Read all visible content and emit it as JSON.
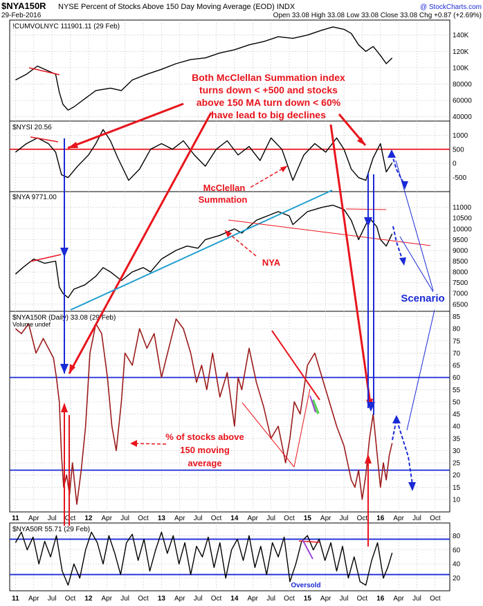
{
  "header": {
    "symbol": "$NYA150R",
    "title": "NYSE Percent of Stocks Above 150 Day Moving Average (EOD) INDX",
    "date": "29-Feb-2016",
    "ohlc": "Open 33.08  High 33.08  Low 33.08  Close 33.08  Chg +0.87 (+2.69%)",
    "brand": "@ StockCharts.com"
  },
  "colors": {
    "price": "#000000",
    "red": "#e8141c",
    "blue": "#1a2ad6",
    "trend": "#1f9fcf",
    "darkred": "#9b1b1b",
    "purple": "#a04ad8",
    "green": "#5fd35f"
  },
  "chart_data": [
    {
      "type": "line",
      "name": "cumvol",
      "title": "!CUMVOLNYC 111901.11 (29 Feb)",
      "ylim": [
        38000,
        155000
      ],
      "ticks": [
        {
          "v": 40000,
          "l": "40000"
        },
        {
          "v": 60000,
          "l": "60000"
        },
        {
          "v": 80000,
          "l": "80000"
        },
        {
          "v": 100000,
          "l": "100K"
        },
        {
          "v": 120000,
          "l": "120K"
        },
        {
          "v": 140000,
          "l": "140K"
        }
      ],
      "x": [
        2011.0,
        2011.15,
        2011.3,
        2011.45,
        2011.55,
        2011.6,
        2011.65,
        2011.72,
        2011.8,
        2011.95,
        2012.1,
        2012.3,
        2012.45,
        2012.6,
        2012.8,
        2013.0,
        2013.2,
        2013.4,
        2013.6,
        2013.8,
        2014.0,
        2014.2,
        2014.4,
        2014.6,
        2014.8,
        2015.0,
        2015.2,
        2015.35,
        2015.5,
        2015.6,
        2015.7,
        2015.8,
        2015.9,
        2016.0,
        2016.08,
        2016.16
      ],
      "y": [
        85000,
        92000,
        102000,
        96000,
        92000,
        70000,
        55000,
        48000,
        52000,
        62000,
        72000,
        75000,
        72000,
        85000,
        92000,
        98000,
        105000,
        110000,
        112000,
        118000,
        122000,
        128000,
        132000,
        138000,
        136000,
        140000,
        146000,
        150000,
        147000,
        142000,
        128000,
        120000,
        126000,
        115000,
        105000,
        112000
      ]
    },
    {
      "type": "line",
      "name": "nysi",
      "title": "$NYSI 20.56",
      "ylim": [
        -900,
        1400
      ],
      "ticks": [
        {
          "v": -500,
          "l": "-500"
        },
        {
          "v": 0,
          "l": "0"
        },
        {
          "v": 500,
          "l": "500"
        },
        {
          "v": 1000,
          "l": "1000"
        }
      ],
      "x": [
        2011.0,
        2011.15,
        2011.3,
        2011.45,
        2011.55,
        2011.63,
        2011.72,
        2011.85,
        2012.0,
        2012.1,
        2012.2,
        2012.3,
        2012.4,
        2012.55,
        2012.7,
        2012.85,
        2013.0,
        2013.15,
        2013.3,
        2013.45,
        2013.6,
        2013.75,
        2013.9,
        2014.05,
        2014.2,
        2014.35,
        2014.5,
        2014.65,
        2014.8,
        2014.95,
        2015.1,
        2015.25,
        2015.4,
        2015.5,
        2015.6,
        2015.7,
        2015.8,
        2015.9,
        2016.0,
        2016.08,
        2016.16
      ],
      "y": [
        400,
        700,
        900,
        700,
        400,
        -400,
        -500,
        -100,
        300,
        700,
        1200,
        800,
        200,
        -600,
        -200,
        500,
        700,
        500,
        800,
        300,
        -100,
        500,
        800,
        300,
        600,
        100,
        900,
        500,
        -600,
        300,
        700,
        400,
        900,
        500,
        -200,
        -500,
        -600,
        200,
        700,
        -300,
        20
      ]
    },
    {
      "type": "line",
      "name": "nya",
      "title": "$NYA 9771.00",
      "ylim": [
        6300,
        11600
      ],
      "ticks": [
        {
          "v": 6500,
          "l": "6500"
        },
        {
          "v": 7000,
          "l": "7000"
        },
        {
          "v": 7500,
          "l": "7500"
        },
        {
          "v": 8000,
          "l": "8000"
        },
        {
          "v": 8500,
          "l": "8500"
        },
        {
          "v": 9000,
          "l": "9000"
        },
        {
          "v": 9500,
          "l": "9500"
        },
        {
          "v": 10000,
          "l": "10000"
        },
        {
          "v": 10500,
          "l": "10500"
        },
        {
          "v": 11000,
          "l": "11000"
        }
      ],
      "x": [
        2011.0,
        2011.1,
        2011.25,
        2011.4,
        2011.55,
        2011.6,
        2011.65,
        2011.72,
        2011.8,
        2011.95,
        2012.1,
        2012.2,
        2012.3,
        2012.45,
        2012.6,
        2012.75,
        2012.85,
        2013.0,
        2013.2,
        2013.35,
        2013.5,
        2013.6,
        2013.8,
        2014.0,
        2014.1,
        2014.3,
        2014.45,
        2014.6,
        2014.75,
        2014.8,
        2015.0,
        2015.2,
        2015.35,
        2015.5,
        2015.6,
        2015.7,
        2015.8,
        2015.85,
        2015.95,
        2016.0,
        2016.08,
        2016.16
      ],
      "y": [
        7900,
        8200,
        8600,
        8400,
        8500,
        7300,
        7000,
        6800,
        7200,
        7400,
        7800,
        8200,
        8000,
        7600,
        8000,
        8200,
        8000,
        8600,
        9000,
        9200,
        9100,
        9500,
        9700,
        10000,
        9800,
        10400,
        10600,
        10800,
        10600,
        10200,
        10800,
        11000,
        11100,
        10900,
        10400,
        9500,
        10200,
        10500,
        10100,
        9500,
        9200,
        9771
      ]
    },
    {
      "type": "line",
      "name": "nya150r",
      "title": "$NYA150R (Daily) 33.08 (29 Feb)",
      "legend": "Volume undef",
      "ylim": [
        6,
        86
      ],
      "ticks": [
        {
          "v": 10,
          "l": "10"
        },
        {
          "v": 15,
          "l": "15"
        },
        {
          "v": 20,
          "l": "20"
        },
        {
          "v": 25,
          "l": "25"
        },
        {
          "v": 30,
          "l": "30"
        },
        {
          "v": 35,
          "l": "35"
        },
        {
          "v": 40,
          "l": "40"
        },
        {
          "v": 45,
          "l": "45"
        },
        {
          "v": 50,
          "l": "50"
        },
        {
          "v": 55,
          "l": "55"
        },
        {
          "v": 60,
          "l": "60"
        },
        {
          "v": 65,
          "l": "65"
        },
        {
          "v": 70,
          "l": "70"
        },
        {
          "v": 75,
          "l": "75"
        },
        {
          "v": 80,
          "l": "80"
        },
        {
          "v": 85,
          "l": "85"
        }
      ],
      "x": [
        2011.0,
        2011.08,
        2011.18,
        2011.28,
        2011.38,
        2011.45,
        2011.52,
        2011.56,
        2011.6,
        2011.63,
        2011.66,
        2011.7,
        2011.74,
        2011.78,
        2011.84,
        2011.9,
        2011.96,
        2012.02,
        2012.1,
        2012.18,
        2012.26,
        2012.32,
        2012.38,
        2012.45,
        2012.5,
        2012.6,
        2012.7,
        2012.8,
        2012.9,
        2013.0,
        2013.1,
        2013.2,
        2013.3,
        2013.4,
        2013.48,
        2013.55,
        2013.62,
        2013.7,
        2013.8,
        2013.9,
        2014.0,
        2014.05,
        2014.1,
        2014.2,
        2014.3,
        2014.4,
        2014.5,
        2014.6,
        2014.7,
        2014.76,
        2014.82,
        2014.9,
        2015.0,
        2015.1,
        2015.2,
        2015.3,
        2015.4,
        2015.5,
        2015.55,
        2015.6,
        2015.65,
        2015.7,
        2015.75,
        2015.8,
        2015.85,
        2015.9,
        2015.95,
        2016.0,
        2016.04,
        2016.08,
        2016.12,
        2016.16
      ],
      "y": [
        80,
        78,
        82,
        70,
        76,
        72,
        68,
        60,
        50,
        28,
        15,
        20,
        12,
        25,
        8,
        22,
        40,
        70,
        82,
        78,
        60,
        40,
        30,
        50,
        70,
        65,
        80,
        72,
        78,
        60,
        72,
        84,
        80,
        70,
        58,
        65,
        55,
        70,
        52,
        62,
        40,
        60,
        55,
        72,
        58,
        48,
        35,
        40,
        25,
        35,
        50,
        45,
        65,
        70,
        60,
        50,
        40,
        32,
        25,
        18,
        15,
        22,
        10,
        20,
        35,
        45,
        30,
        15,
        25,
        18,
        28,
        33.08
      ]
    },
    {
      "type": "line",
      "name": "nya50r",
      "title": "$NYA50R 55.71 (29 Feb)",
      "ylim": [
        6,
        94
      ],
      "ticks": [
        {
          "v": 20,
          "l": "20"
        },
        {
          "v": 40,
          "l": "40"
        },
        {
          "v": 60,
          "l": "60"
        },
        {
          "v": 80,
          "l": "80"
        }
      ],
      "x": [
        2011.0,
        2011.08,
        2011.16,
        2011.24,
        2011.32,
        2011.4,
        2011.48,
        2011.56,
        2011.64,
        2011.72,
        2011.8,
        2011.88,
        2011.96,
        2012.04,
        2012.12,
        2012.2,
        2012.28,
        2012.36,
        2012.44,
        2012.52,
        2012.6,
        2012.68,
        2012.76,
        2012.84,
        2012.92,
        2013.0,
        2013.08,
        2013.16,
        2013.24,
        2013.32,
        2013.4,
        2013.48,
        2013.56,
        2013.64,
        2013.72,
        2013.8,
        2013.88,
        2013.96,
        2014.04,
        2014.12,
        2014.2,
        2014.28,
        2014.36,
        2014.44,
        2014.52,
        2014.6,
        2014.68,
        2014.76,
        2014.84,
        2014.92,
        2015.0,
        2015.08,
        2015.16,
        2015.24,
        2015.32,
        2015.4,
        2015.48,
        2015.56,
        2015.64,
        2015.72,
        2015.8,
        2015.88,
        2015.96,
        2016.04,
        2016.1,
        2016.16
      ],
      "y": [
        70,
        85,
        60,
        78,
        40,
        72,
        50,
        80,
        30,
        10,
        40,
        20,
        60,
        85,
        70,
        40,
        80,
        55,
        25,
        70,
        82,
        45,
        75,
        30,
        60,
        85,
        55,
        80,
        40,
        70,
        25,
        65,
        50,
        78,
        35,
        70,
        20,
        60,
        75,
        45,
        80,
        35,
        65,
        25,
        70,
        50,
        78,
        15,
        40,
        72,
        80,
        60,
        75,
        45,
        70,
        30,
        65,
        20,
        50,
        15,
        10,
        45,
        70,
        20,
        35,
        55.71
      ]
    }
  ],
  "xaxis": [
    {
      "v": 2011.0,
      "l": "11"
    },
    {
      "v": 2011.25,
      "l": "Apr"
    },
    {
      "v": 2011.5,
      "l": "Jul"
    },
    {
      "v": 2011.75,
      "l": "Oct"
    },
    {
      "v": 2012.0,
      "l": "12"
    },
    {
      "v": 2012.25,
      "l": "Apr"
    },
    {
      "v": 2012.5,
      "l": "Jul"
    },
    {
      "v": 2012.75,
      "l": "Oct"
    },
    {
      "v": 2013.0,
      "l": "13"
    },
    {
      "v": 2013.25,
      "l": "Apr"
    },
    {
      "v": 2013.5,
      "l": "Jul"
    },
    {
      "v": 2013.75,
      "l": "Oct"
    },
    {
      "v": 2014.0,
      "l": "14"
    },
    {
      "v": 2014.25,
      "l": "Apr"
    },
    {
      "v": 2014.5,
      "l": "Jul"
    },
    {
      "v": 2014.75,
      "l": "Oct"
    },
    {
      "v": 2015.0,
      "l": "15"
    },
    {
      "v": 2015.25,
      "l": "Apr"
    },
    {
      "v": 2015.5,
      "l": "Jul"
    },
    {
      "v": 2015.75,
      "l": "Oct"
    },
    {
      "v": 2016.0,
      "l": "16"
    },
    {
      "v": 2016.25,
      "l": "Apr"
    },
    {
      "v": 2016.5,
      "l": "Jul"
    },
    {
      "v": 2016.75,
      "l": "Oct"
    }
  ],
  "levels": {
    "nysi_red": 500,
    "nya150r_upper": 60,
    "nya150r_lower": 22,
    "nya50r_upper": 75,
    "nya50r_lower": 25
  },
  "annotations": {
    "main_1": "Both McClellan Summation index",
    "main_2": "turns down < +500 and stocks",
    "main_3": "above 150 MA turn down < 60%",
    "main_4": "have lead to big declines",
    "mcclellan_1": "McClellan",
    "mcclellan_2": "Summation",
    "nya": "NYA",
    "pct_1": "% of stocks above",
    "pct_2": "150 moving",
    "pct_3": "average",
    "scenario": "Scenario",
    "oversold": "Oversold"
  }
}
